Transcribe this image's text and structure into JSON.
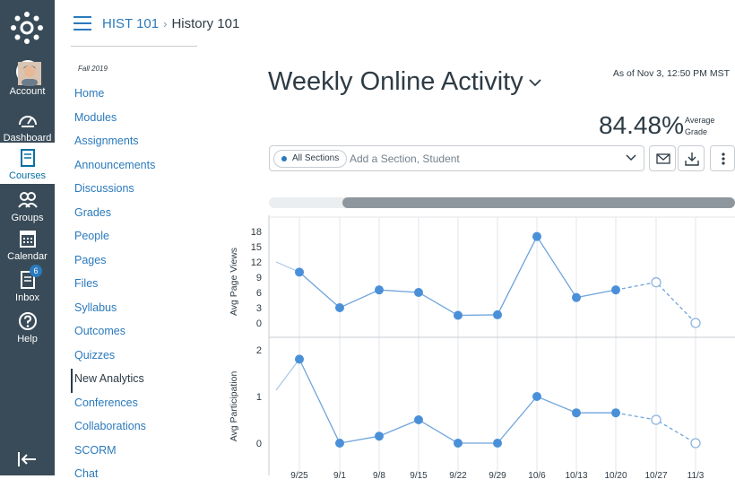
{
  "global_nav": {
    "items": [
      {
        "label": "Account",
        "icon": "user-avatar"
      },
      {
        "label": "Dashboard",
        "icon": "speedometer-icon"
      },
      {
        "label": "Courses",
        "icon": "book-icon"
      },
      {
        "label": "Groups",
        "icon": "people-icon"
      },
      {
        "label": "Calendar",
        "icon": "calendar-icon"
      },
      {
        "label": "Inbox",
        "icon": "inbox-icon",
        "badge": "6"
      },
      {
        "label": "Help",
        "icon": "question-icon"
      }
    ]
  },
  "breadcrumb": {
    "course": "HIST 101",
    "separator": "›",
    "current": "History 101"
  },
  "course_nav": {
    "term": "Fall 2019",
    "items": [
      "Home",
      "Modules",
      "Assignments",
      "Announcements",
      "Discussions",
      "Grades",
      "People",
      "Pages",
      "Files",
      "Syllabus",
      "Outcomes",
      "Quizzes",
      "New Analytics",
      "Conferences",
      "Collaborations",
      "SCORM",
      "Chat"
    ],
    "active": "New Analytics"
  },
  "page": {
    "title": "Weekly Online Activity",
    "as_of": "As of Nov 3, 12:50 PM MST",
    "grade_value": "84.48%",
    "grade_label_1": "Average",
    "grade_label_2": "Grade"
  },
  "filter": {
    "pill": "All Sections",
    "placeholder": "Add a Section, Student"
  },
  "colors": {
    "nav_bg": "#394b58",
    "accent": "#2b7abc",
    "point": "#4a90d9"
  },
  "chart_data": [
    {
      "type": "line",
      "ylabel": "Avg Page Views",
      "yticks": [
        0,
        3,
        6,
        9,
        12,
        15,
        18
      ],
      "ylim": [
        0,
        18
      ],
      "x": [
        "9/25",
        "9/1",
        "9/8",
        "9/15",
        "9/22",
        "9/29",
        "10/6",
        "10/13",
        "10/20",
        "10/27",
        "11/3"
      ],
      "values": [
        10,
        3,
        6.5,
        6,
        1.5,
        1.6,
        17,
        5,
        6.5,
        8,
        0
      ],
      "projected_from_index": 8
    },
    {
      "type": "line",
      "ylabel": "Avg Participation",
      "yticks": [
        0,
        1,
        2
      ],
      "ylim": [
        0,
        2
      ],
      "x": [
        "9/25",
        "9/1",
        "9/8",
        "9/15",
        "9/22",
        "9/29",
        "10/6",
        "10/13",
        "10/20",
        "10/27",
        "11/3"
      ],
      "values": [
        1.8,
        0,
        0.15,
        0.5,
        0,
        0,
        1,
        0.65,
        0.65,
        0.5,
        0
      ],
      "projected_from_index": 8
    }
  ]
}
